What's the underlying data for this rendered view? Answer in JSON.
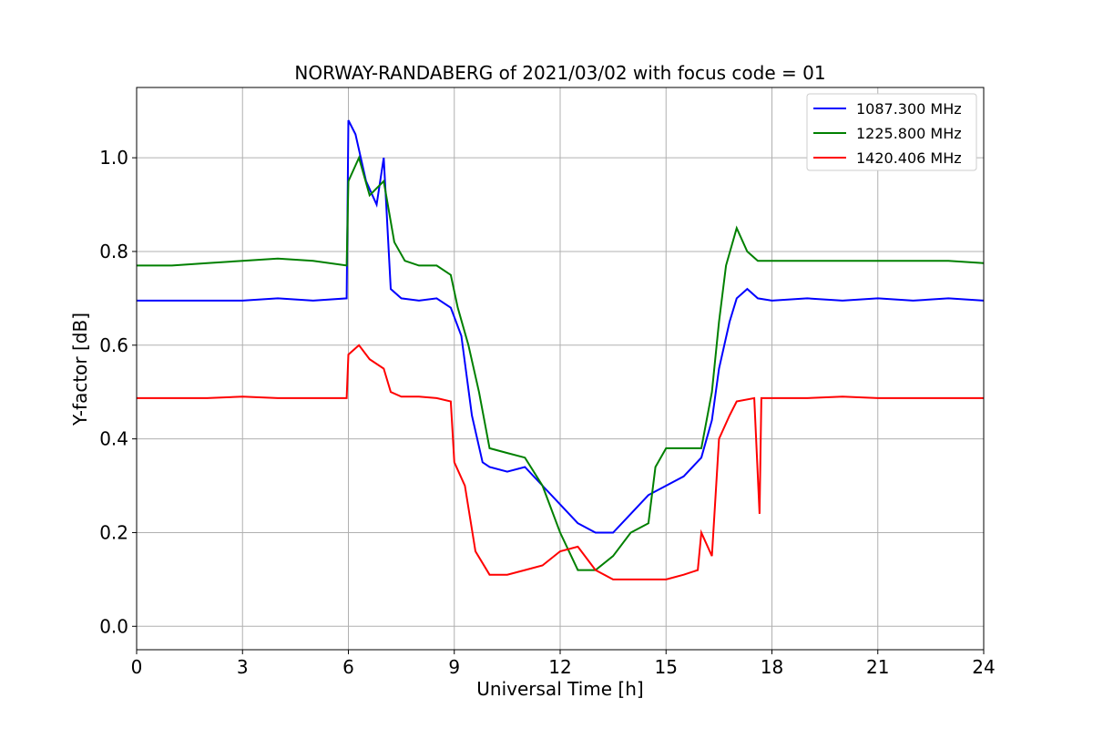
{
  "chart_data": {
    "type": "line",
    "title": "NORWAY-RANDABERG of 2021/03/02 with focus code = 01",
    "xlabel": "Universal Time [h]",
    "ylabel": "Y-factor [dB]",
    "xlim": [
      0,
      24
    ],
    "ylim": [
      -0.05,
      1.15
    ],
    "xticks": [
      0,
      3,
      6,
      9,
      12,
      15,
      18,
      21,
      24
    ],
    "xtick_labels": [
      "0",
      "3",
      "6",
      "9",
      "12",
      "15",
      "18",
      "21",
      "24"
    ],
    "yticks": [
      0.0,
      0.2,
      0.4,
      0.6,
      0.8,
      1.0
    ],
    "ytick_labels": [
      "0.0",
      "0.2",
      "0.4",
      "0.6",
      "0.8",
      "1.0"
    ],
    "grid": true,
    "legend_position": "top-right",
    "series": [
      {
        "name": "1087.300 MHz",
        "color": "#0000ff",
        "x": [
          0,
          1,
          2,
          3,
          4,
          5,
          5.95,
          6.0,
          6.2,
          6.5,
          6.8,
          7.0,
          7.2,
          7.5,
          8.0,
          8.5,
          8.9,
          9.2,
          9.5,
          9.8,
          10.0,
          10.5,
          11.0,
          11.5,
          12.0,
          12.5,
          13.0,
          13.5,
          14.0,
          14.5,
          15.0,
          15.5,
          16.0,
          16.3,
          16.5,
          16.8,
          17.0,
          17.3,
          17.6,
          18.0,
          19,
          20,
          21,
          22,
          23,
          24
        ],
        "values": [
          0.695,
          0.695,
          0.695,
          0.695,
          0.7,
          0.695,
          0.7,
          1.08,
          1.05,
          0.95,
          0.9,
          1.0,
          0.72,
          0.7,
          0.695,
          0.7,
          0.68,
          0.62,
          0.45,
          0.35,
          0.34,
          0.33,
          0.34,
          0.3,
          0.26,
          0.22,
          0.2,
          0.2,
          0.24,
          0.28,
          0.3,
          0.32,
          0.36,
          0.44,
          0.55,
          0.65,
          0.7,
          0.72,
          0.7,
          0.695,
          0.7,
          0.695,
          0.7,
          0.695,
          0.7,
          0.695
        ]
      },
      {
        "name": "1225.800 MHz",
        "color": "#008000",
        "x": [
          0,
          1,
          2,
          3,
          4,
          5,
          5.95,
          6.0,
          6.3,
          6.6,
          7.0,
          7.3,
          7.6,
          8.0,
          8.5,
          8.9,
          9.1,
          9.4,
          9.7,
          10.0,
          10.5,
          11.0,
          11.5,
          12.0,
          12.5,
          13.0,
          13.5,
          14.0,
          14.5,
          14.7,
          15.0,
          15.5,
          16.0,
          16.3,
          16.5,
          16.7,
          17.0,
          17.3,
          17.6,
          18.0,
          19,
          20,
          21,
          22,
          23,
          24
        ],
        "values": [
          0.77,
          0.77,
          0.775,
          0.78,
          0.785,
          0.78,
          0.77,
          0.95,
          1.0,
          0.92,
          0.95,
          0.82,
          0.78,
          0.77,
          0.77,
          0.75,
          0.68,
          0.6,
          0.5,
          0.38,
          0.37,
          0.36,
          0.3,
          0.2,
          0.12,
          0.12,
          0.15,
          0.2,
          0.22,
          0.34,
          0.38,
          0.38,
          0.38,
          0.5,
          0.65,
          0.77,
          0.85,
          0.8,
          0.78,
          0.78,
          0.78,
          0.78,
          0.78,
          0.78,
          0.78,
          0.775
        ]
      },
      {
        "name": "1420.406 MHz",
        "color": "#ff0000",
        "x": [
          0,
          1,
          2,
          3,
          4,
          5,
          5.95,
          6.0,
          6.3,
          6.6,
          7.0,
          7.2,
          7.5,
          8.0,
          8.5,
          8.9,
          9.0,
          9.3,
          9.6,
          10.0,
          10.5,
          11.0,
          11.5,
          12.0,
          12.5,
          13.0,
          13.5,
          14.0,
          14.5,
          15.0,
          15.5,
          15.9,
          16.0,
          16.3,
          16.5,
          16.8,
          17.0,
          17.5,
          17.65,
          17.7,
          18.0,
          19,
          20,
          21,
          22,
          23,
          24
        ],
        "values": [
          0.487,
          0.487,
          0.487,
          0.49,
          0.487,
          0.487,
          0.487,
          0.58,
          0.6,
          0.57,
          0.55,
          0.5,
          0.49,
          0.49,
          0.487,
          0.48,
          0.35,
          0.3,
          0.16,
          0.11,
          0.11,
          0.12,
          0.13,
          0.16,
          0.17,
          0.12,
          0.1,
          0.1,
          0.1,
          0.1,
          0.11,
          0.12,
          0.2,
          0.15,
          0.4,
          0.45,
          0.48,
          0.487,
          0.24,
          0.487,
          0.487,
          0.487,
          0.49,
          0.487,
          0.487,
          0.487,
          0.487
        ]
      }
    ]
  }
}
